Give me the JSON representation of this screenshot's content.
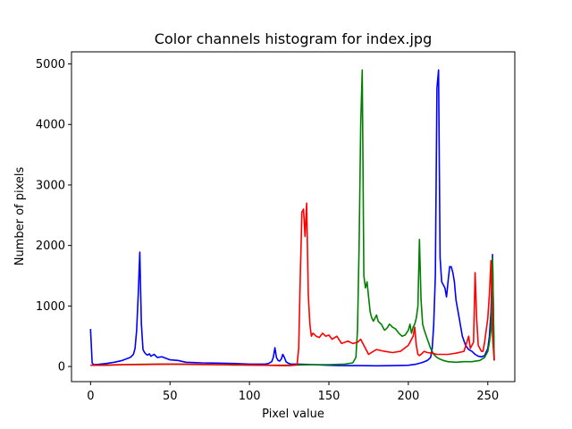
{
  "chart_data": {
    "type": "line",
    "title": "Color channels histogram for index.jpg",
    "xlabel": "Pixel value",
    "ylabel": "Number of pixels",
    "xlim": [
      -12,
      267
    ],
    "ylim": [
      -250,
      5200
    ],
    "xticks": [
      0,
      50,
      100,
      150,
      200,
      250
    ],
    "yticks": [
      0,
      1000,
      2000,
      3000,
      4000,
      5000
    ],
    "grid": false,
    "series": [
      {
        "color": "#0000ff",
        "x": [
          0,
          1,
          2,
          5,
          10,
          15,
          20,
          25,
          27,
          28,
          29,
          30,
          31,
          32,
          33,
          34,
          35,
          36,
          37,
          38,
          40,
          42,
          45,
          50,
          55,
          60,
          70,
          80,
          90,
          100,
          110,
          112,
          114,
          115,
          116,
          117,
          118,
          119,
          120,
          121,
          122,
          123,
          124,
          125,
          126,
          130,
          135,
          140,
          150,
          160,
          170,
          180,
          190,
          200,
          205,
          208,
          210,
          212,
          214,
          215,
          216,
          217,
          218,
          219,
          220,
          221,
          222,
          223,
          224,
          225,
          226,
          227,
          228,
          229,
          230,
          232,
          234,
          236,
          238,
          240,
          242,
          244,
          246,
          248,
          250,
          251,
          252,
          253,
          254
        ],
        "y": [
          620,
          60,
          30,
          35,
          50,
          70,
          100,
          150,
          200,
          300,
          600,
          1200,
          1890,
          700,
          280,
          230,
          200,
          190,
          210,
          170,
          200,
          150,
          160,
          110,
          100,
          70,
          60,
          55,
          50,
          40,
          40,
          50,
          80,
          150,
          310,
          150,
          100,
          90,
          120,
          200,
          150,
          80,
          60,
          50,
          40,
          40,
          35,
          30,
          20,
          15,
          15,
          12,
          15,
          20,
          40,
          60,
          80,
          100,
          150,
          300,
          700,
          1500,
          4600,
          4900,
          1800,
          1400,
          1350,
          1300,
          1150,
          1400,
          1650,
          1650,
          1550,
          1400,
          1100,
          800,
          500,
          350,
          280,
          250,
          200,
          170,
          160,
          180,
          300,
          500,
          900,
          1850,
          100
        ]
      },
      {
        "color": "#008000",
        "x": [
          0,
          5,
          10,
          20,
          30,
          40,
          50,
          60,
          70,
          80,
          90,
          100,
          110,
          120,
          130,
          140,
          150,
          160,
          165,
          167,
          168,
          169,
          170,
          171,
          172,
          173,
          174,
          175,
          176,
          177,
          178,
          179,
          180,
          181,
          182,
          183,
          184,
          185,
          186,
          187,
          188,
          189,
          190,
          192,
          194,
          196,
          198,
          200,
          201,
          202,
          203,
          204,
          205,
          206,
          207,
          208,
          209,
          210,
          212,
          214,
          216,
          218,
          220,
          222,
          225,
          230,
          235,
          240,
          245,
          248,
          250,
          251,
          252,
          253,
          254
        ],
        "y": [
          20,
          20,
          25,
          30,
          35,
          40,
          40,
          35,
          30,
          30,
          25,
          25,
          20,
          20,
          25,
          30,
          30,
          40,
          60,
          150,
          600,
          2000,
          4000,
          4900,
          1500,
          1300,
          1400,
          1150,
          900,
          800,
          750,
          800,
          850,
          750,
          720,
          700,
          650,
          600,
          620,
          650,
          700,
          680,
          650,
          620,
          550,
          500,
          520,
          600,
          700,
          550,
          650,
          700,
          800,
          1000,
          2100,
          1100,
          700,
          600,
          450,
          300,
          200,
          150,
          120,
          100,
          80,
          70,
          80,
          80,
          100,
          150,
          250,
          400,
          600,
          1800,
          100
        ]
      },
      {
        "color": "#ff0000",
        "x": [
          0,
          5,
          10,
          20,
          30,
          40,
          50,
          60,
          70,
          80,
          90,
          100,
          110,
          120,
          125,
          128,
          130,
          131,
          132,
          133,
          134,
          135,
          136,
          137,
          138,
          139,
          140,
          142,
          144,
          146,
          148,
          150,
          152,
          155,
          158,
          160,
          162,
          165,
          168,
          170,
          172,
          175,
          178,
          180,
          185,
          190,
          195,
          200,
          203,
          204,
          205,
          206,
          207,
          208,
          210,
          212,
          215,
          218,
          220,
          225,
          230,
          235,
          238,
          239,
          240,
          241,
          242,
          243,
          244,
          245,
          246,
          247,
          248,
          250,
          251,
          252,
          253,
          254
        ],
        "y": [
          20,
          20,
          20,
          30,
          30,
          35,
          40,
          40,
          35,
          30,
          30,
          25,
          20,
          15,
          15,
          20,
          30,
          300,
          1500,
          2550,
          2600,
          2150,
          2700,
          1200,
          700,
          500,
          550,
          500,
          480,
          550,
          500,
          520,
          450,
          500,
          380,
          400,
          420,
          380,
          400,
          450,
          350,
          200,
          250,
          280,
          250,
          230,
          250,
          350,
          500,
          650,
          350,
          200,
          180,
          200,
          250,
          230,
          220,
          200,
          200,
          200,
          220,
          250,
          500,
          300,
          350,
          400,
          1550,
          800,
          350,
          300,
          250,
          250,
          400,
          800,
          1200,
          1750,
          500,
          100
        ]
      }
    ]
  }
}
